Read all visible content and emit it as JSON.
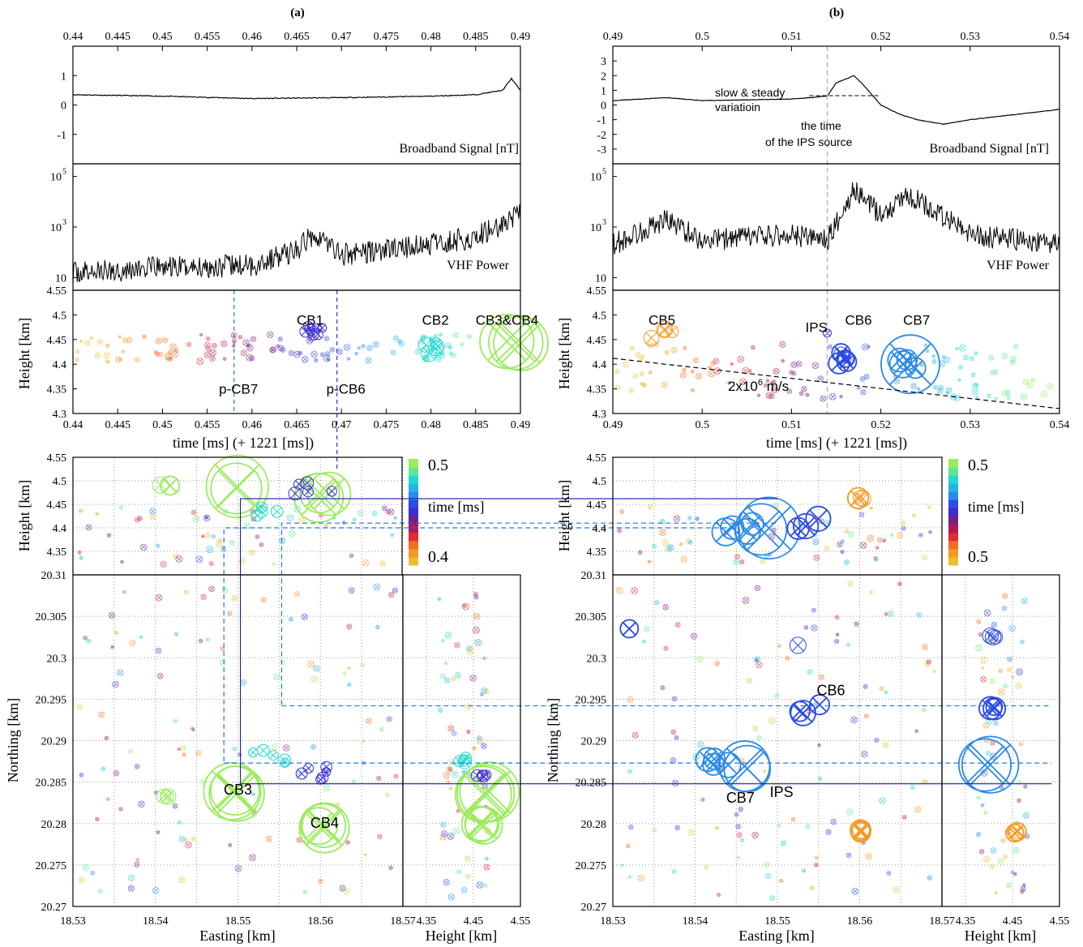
{
  "panels": {
    "a": {
      "label": "(a)",
      "time_axis_ticks": [
        "0.44",
        "0.445",
        "0.45",
        "0.455",
        "0.46",
        "0.465",
        "0.47",
        "0.475",
        "0.48",
        "0.485",
        "0.49"
      ],
      "time_axis_values": [
        0.44,
        0.445,
        0.45,
        0.455,
        0.46,
        0.465,
        0.47,
        0.475,
        0.48,
        0.485,
        0.49
      ],
      "broadband": {
        "title": "Broadband Signal [nT]",
        "yticks": [
          "1",
          "0",
          "-1"
        ],
        "ytick_values": [
          1,
          0,
          -1
        ],
        "ylim": [
          -2,
          2
        ]
      },
      "vhf": {
        "title": "VHF Power",
        "yticks": [
          "10",
          "10^3",
          "10^5"
        ],
        "ylim_log": [
          0.5,
          5.5
        ]
      },
      "height_time": {
        "ylabel": "Height [km]",
        "xlabel": "time [ms] (+ 1221 [ms])",
        "yticks": [
          "4.55",
          "4.5",
          "4.45",
          "4.4",
          "4.35",
          "4.3"
        ],
        "ylim": [
          4.3,
          4.55
        ],
        "labels": [
          {
            "text": "CB1",
            "x": 0.4665,
            "y": 4.48
          },
          {
            "text": "CB2",
            "x": 0.4805,
            "y": 4.48
          },
          {
            "text": "CB3&CB4",
            "x": 0.4885,
            "y": 4.48
          },
          {
            "text": "p-CB7",
            "x": 0.4585,
            "y": 4.34
          },
          {
            "text": "p-CB6",
            "x": 0.4705,
            "y": 4.34
          }
        ]
      },
      "plan": {
        "height_label": "Height [km]",
        "height_yticks": [
          "4.55",
          "4.5",
          "4.45",
          "4.4",
          "4.35"
        ],
        "northing_label": "Northing [km]",
        "northing_ticks": [
          "20.31",
          "20.305",
          "20.3",
          "20.295",
          "20.29",
          "20.285",
          "20.28",
          "20.275",
          "20.27"
        ],
        "easting_label": "Easting [km]",
        "easting_ticks": [
          "18.53",
          "18.54",
          "18.55",
          "18.56",
          "18.57"
        ],
        "side_height_label": "Height [km]",
        "side_ticks": [
          "4.35",
          "4.45",
          "4.55"
        ],
        "labels": [
          {
            "text": "CB3",
            "x": 18.55,
            "y": 20.2835
          },
          {
            "text": "CB4",
            "x": 18.5605,
            "y": 20.2795
          }
        ]
      },
      "colorbar": {
        "top": "0.5",
        "mid": "time [ms]",
        "bottom": "0.4"
      }
    },
    "b": {
      "label": "(b)",
      "time_axis_ticks": [
        "0.49",
        "0.5",
        "0.51",
        "0.52",
        "0.53",
        "0.54"
      ],
      "time_axis_values": [
        0.49,
        0.5,
        0.51,
        0.52,
        0.53,
        0.54
      ],
      "broadband": {
        "title": "Broadband Signal [nT]",
        "yticks": [
          "3",
          "2",
          "1",
          "0",
          "-1",
          "-2",
          "-3"
        ],
        "ytick_values": [
          3,
          2,
          1,
          0,
          -1,
          -2,
          -3
        ],
        "ylim": [
          -4,
          4
        ],
        "annotation_1a": "slow & steady",
        "annotation_1b": "variatioin",
        "annotation_2a": "the time",
        "annotation_2b": "of the IPS source"
      },
      "vhf": {
        "title": "VHF Power",
        "yticks": [
          "10",
          "10^3",
          "10^5"
        ],
        "ylim_log": [
          0.5,
          5.5
        ]
      },
      "height_time": {
        "ylabel": "Height [km]",
        "xlabel": "time [ms] (+ 1221 [ms])",
        "yticks": [
          "4.55",
          "4.5",
          "4.45",
          "4.4",
          "4.35",
          "4.3"
        ],
        "ylim": [
          4.3,
          4.55
        ],
        "ips_time": 0.514,
        "speed_label": "2x10",
        "speed_label_exp": "6",
        "speed_label_unit": " m/s",
        "labels": [
          {
            "text": "CB5",
            "x": 0.4955,
            "y": 4.48
          },
          {
            "text": "IPS",
            "x": 0.5128,
            "y": 4.465
          },
          {
            "text": "CB6",
            "x": 0.5175,
            "y": 4.48
          },
          {
            "text": "CB7",
            "x": 0.524,
            "y": 4.48
          }
        ]
      },
      "plan": {
        "height_label": "Height [km]",
        "height_yticks": [
          "4.55",
          "4.5",
          "4.45",
          "4.4",
          "4.35"
        ],
        "northing_label": "Northing [km]",
        "northing_ticks": [
          "20.31",
          "20.305",
          "20.3",
          "20.295",
          "20.29",
          "20.285",
          "20.28",
          "20.275",
          "20.27"
        ],
        "easting_label": "Easting [km]",
        "easting_ticks": [
          "18.53",
          "18.54",
          "18.55",
          "18.56",
          "18.57"
        ],
        "side_height_label": "Height [km]",
        "side_ticks": [
          "4.35",
          "4.45",
          "4.55"
        ],
        "labels": [
          {
            "text": "CB6",
            "x": 18.5565,
            "y": 20.2955
          },
          {
            "text": "CB7",
            "x": 18.5455,
            "y": 20.2825
          },
          {
            "text": "IPS",
            "x": 18.5505,
            "y": 20.2832
          }
        ]
      },
      "colorbar": {
        "top": "0.5",
        "mid": "time [ms]",
        "bottom": "0.5"
      }
    }
  },
  "chart_data": [
    {
      "type": "line",
      "title": "(a)",
      "ylabel": "Broadband Signal [nT]",
      "xlim": [
        0.44,
        0.49
      ],
      "ylim": [
        -2,
        2
      ],
      "x": [
        0.44,
        0.45,
        0.46,
        0.47,
        0.48,
        0.485,
        0.488,
        0.489,
        0.49
      ],
      "y": [
        0.35,
        0.3,
        0.22,
        0.25,
        0.3,
        0.35,
        0.5,
        0.9,
        0.5
      ]
    },
    {
      "type": "line",
      "title": "(a)",
      "ylabel": "VHF Power",
      "xlim": [
        0.44,
        0.49
      ],
      "x": [
        0.44,
        0.45,
        0.46,
        0.465,
        0.467,
        0.47,
        0.48,
        0.485,
        0.49
      ],
      "y": [
        15,
        25,
        30,
        120,
        600,
        80,
        200,
        400,
        3000
      ]
    },
    {
      "type": "line",
      "title": "(b)",
      "ylabel": "Broadband Signal [nT]",
      "xlim": [
        0.49,
        0.54
      ],
      "ylim": [
        -4,
        4
      ],
      "x": [
        0.49,
        0.496,
        0.5,
        0.51,
        0.514,
        0.515,
        0.517,
        0.518,
        0.52,
        0.522,
        0.524,
        0.527,
        0.53,
        0.54
      ],
      "y": [
        0.3,
        0.5,
        0.3,
        0.4,
        0.6,
        1.5,
        2.0,
        1.4,
        0.0,
        -0.6,
        -1.0,
        -1.3,
        -1.0,
        -0.3
      ]
    },
    {
      "type": "line",
      "title": "(b)",
      "ylabel": "VHF Power",
      "xlim": [
        0.49,
        0.54
      ],
      "x": [
        0.49,
        0.496,
        0.5,
        0.51,
        0.514,
        0.517,
        0.52,
        0.523,
        0.53,
        0.54
      ],
      "y": [
        200,
        2000,
        300,
        500,
        300,
        30000,
        3000,
        20000,
        500,
        200
      ]
    },
    {
      "type": "scatter",
      "title": "(a)",
      "xlabel": "time [ms] (+ 1221 [ms])",
      "ylabel": "Height [km]",
      "xlim": [
        0.44,
        0.49
      ],
      "ylim": [
        4.3,
        4.55
      ],
      "series": [
        {
          "name": "CB1",
          "x": [
            0.467
          ],
          "y": [
            4.47
          ]
        },
        {
          "name": "CB2",
          "x": [
            0.481
          ],
          "y": [
            4.43
          ]
        },
        {
          "name": "CB3&CB4",
          "x": [
            0.489
          ],
          "y": [
            4.45
          ]
        }
      ]
    },
    {
      "type": "scatter",
      "title": "(b)",
      "xlabel": "time [ms] (+ 1221 [ms])",
      "ylabel": "Height [km]",
      "xlim": [
        0.49,
        0.54
      ],
      "ylim": [
        4.3,
        4.55
      ],
      "series": [
        {
          "name": "CB5",
          "x": [
            0.4955
          ],
          "y": [
            4.46
          ]
        },
        {
          "name": "IPS",
          "x": [
            0.514
          ],
          "y": [
            4.46
          ]
        },
        {
          "name": "CB6",
          "x": [
            0.5165
          ],
          "y": [
            4.41
          ]
        },
        {
          "name": "CB7",
          "x": [
            0.523
          ],
          "y": [
            4.4
          ]
        }
      ]
    },
    {
      "type": "scatter",
      "title": "(a)",
      "xlabel": "Easting [km]",
      "ylabel": "Northing [km]",
      "xlim": [
        18.53,
        18.57
      ],
      "ylim": [
        20.27,
        20.31
      ],
      "series": [
        {
          "name": "CB3",
          "x": [
            18.5498
          ],
          "y": [
            20.2838
          ]
        },
        {
          "name": "CB4",
          "x": [
            18.5605
          ],
          "y": [
            20.2798
          ]
        }
      ]
    },
    {
      "type": "scatter",
      "title": "(b)",
      "xlabel": "Easting [km]",
      "ylabel": "Northing [km]",
      "xlim": [
        18.53,
        18.57
      ],
      "ylim": [
        20.27,
        20.31
      ],
      "series": [
        {
          "name": "CB6",
          "x": [
            18.554
          ],
          "y": [
            20.294
          ]
        },
        {
          "name": "CB7",
          "x": [
            18.5465
          ],
          "y": [
            20.2868
          ]
        },
        {
          "name": "IPS",
          "x": [
            18.548
          ],
          "y": [
            20.2858
          ]
        }
      ]
    }
  ],
  "colors": {
    "axis": "#000000",
    "grid": "#9a9a9a",
    "guide_dashed": "#1e78e6",
    "guide_solid": "#1a1aa8",
    "ips_line": "#c8b4b4"
  }
}
